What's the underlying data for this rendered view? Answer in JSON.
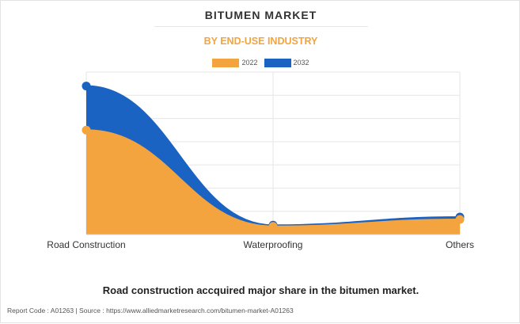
{
  "header": {
    "title": "BITUMEN MARKET",
    "subtitle": "BY END-USE INDUSTRY"
  },
  "legend": [
    {
      "label": "2022",
      "color": "#f3a43f"
    },
    {
      "label": "2032",
      "color": "#1a63c2"
    }
  ],
  "chart_data": {
    "type": "area",
    "categories": [
      "Road Construction",
      "Waterproofing",
      "Others"
    ],
    "series": [
      {
        "name": "2022",
        "values": [
          45,
          3.5,
          6.5
        ],
        "color": "#f3a43f"
      },
      {
        "name": "2032",
        "values": [
          64,
          4.0,
          7.5
        ],
        "color": "#1a63c2"
      }
    ],
    "ylim": [
      0,
      70
    ],
    "grid": true,
    "legend_position": "top-center",
    "smooth": true
  },
  "caption": "Road construction accquired major share in the bitumen market.",
  "footer": "Report Code : A01263  |  Source : https://www.alliedmarketresearch.com/bitumen-market-A01263"
}
